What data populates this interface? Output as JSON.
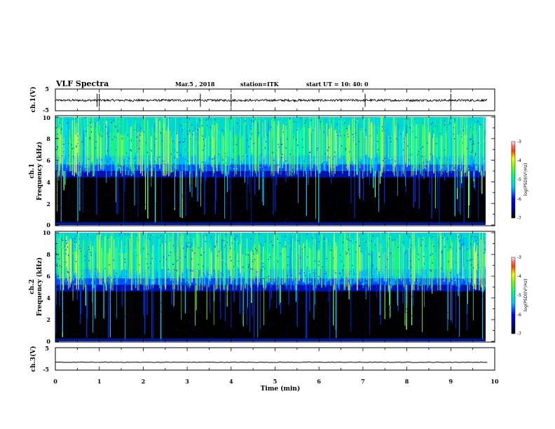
{
  "header": {
    "title": "VLF Spectra",
    "date": "Mar.5 , 2018",
    "station": "station=ITK",
    "start": "start UT = 10: 40: 0"
  },
  "chart_data": [
    {
      "type": "line",
      "ylabel": "ch.1(V)",
      "ylim": [
        -5,
        5
      ],
      "yticks": [
        "5",
        "-5"
      ],
      "xlim": [
        0,
        10
      ],
      "baseline": -0.2,
      "spikes": [
        0.95,
        1.0,
        3.3,
        4.0,
        7.05,
        9.0
      ]
    },
    {
      "type": "heatmap",
      "ylabel": "ch.1\nFrequency (kHz)",
      "ylabel_line1": "ch.1",
      "ylabel_line2": "Frequency (kHz)",
      "ylim": [
        0,
        10
      ],
      "yticks": [
        "0",
        "2",
        "4",
        "6",
        "8",
        "10"
      ],
      "xlim": [
        0,
        9.83
      ],
      "noise_floor_khz": 5.0,
      "colorbar": {
        "label": "log(PSD)(V²/Hz)",
        "range": [
          -7,
          -3
        ],
        "ticks": [
          "-3",
          "-4",
          "-5",
          "-6",
          "-7"
        ]
      }
    },
    {
      "type": "heatmap",
      "ylabel": "ch.2\nFrequency (kHz)",
      "ylabel_line1": "ch.2",
      "ylabel_line2": "Frequency (kHz)",
      "ylim": [
        0,
        10
      ],
      "yticks": [
        "0",
        "2",
        "4",
        "6",
        "8",
        "10"
      ],
      "xlim": [
        0,
        9.83
      ],
      "noise_floor_khz": 5.2,
      "colorbar": {
        "label": "log(PSD)(V²/Hz)",
        "range": [
          -7,
          -3
        ],
        "ticks": [
          "-3",
          "-4",
          "-5",
          "-6",
          "-7"
        ]
      }
    },
    {
      "type": "line",
      "ylabel": "ch.3(V)",
      "ylim": [
        -5,
        5
      ],
      "yticks": [
        "5",
        "-5"
      ],
      "xlim": [
        0,
        10
      ],
      "baseline": -1.5,
      "spikes": []
    }
  ],
  "xaxis": {
    "label": "Time (min)",
    "range": [
      0,
      10
    ],
    "ticks": [
      "0",
      "1",
      "2",
      "3",
      "4",
      "5",
      "6",
      "7",
      "8",
      "9",
      "10"
    ]
  }
}
